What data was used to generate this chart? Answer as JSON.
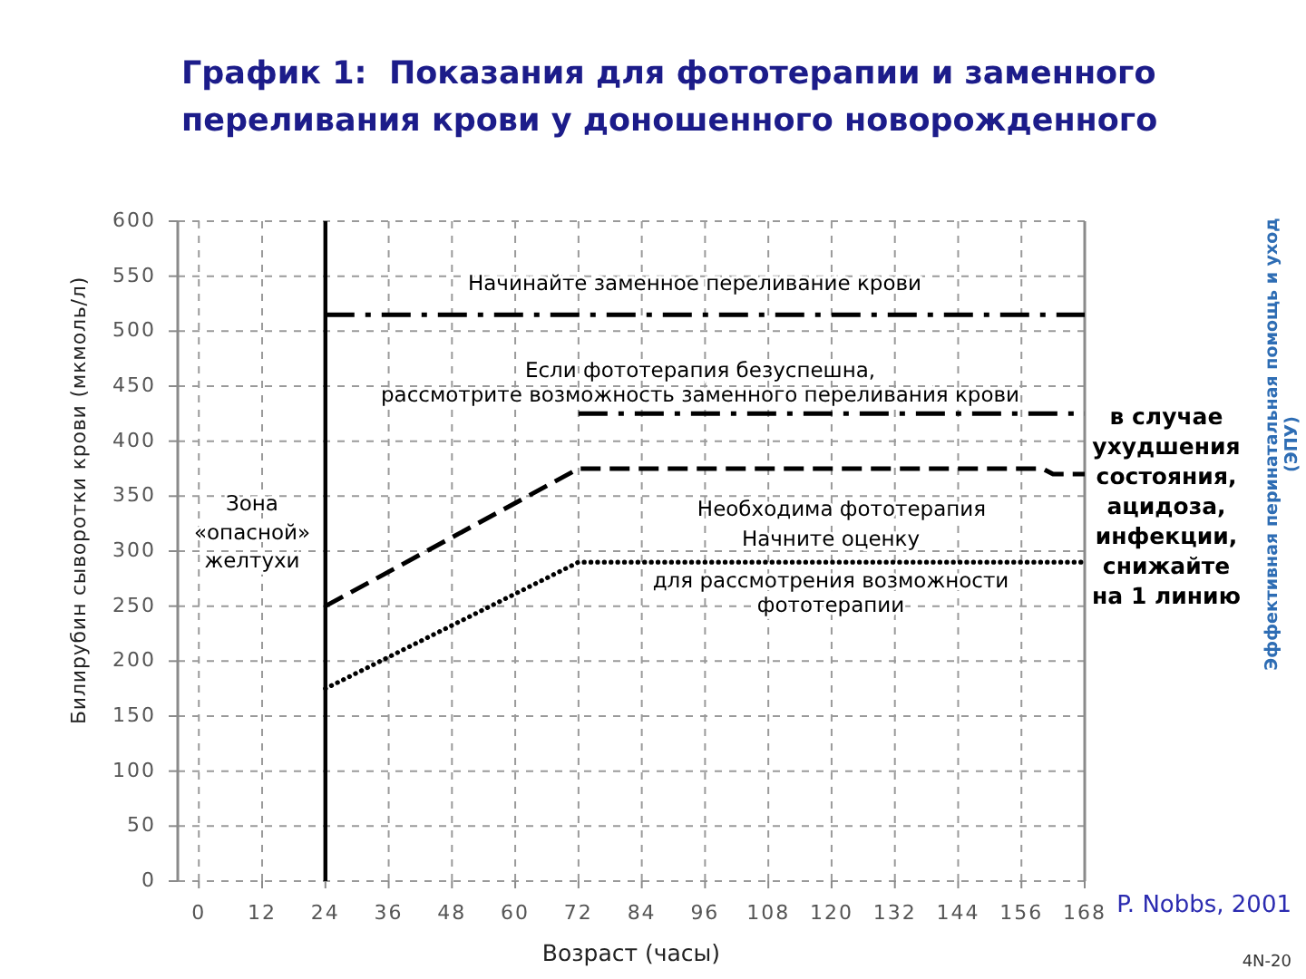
{
  "chart_data": {
    "type": "line",
    "title": "График 1:  Показания для фототерапии и заменного переливания крови у доношенного новорожденного",
    "xlabel": "Возраст (часы)",
    "ylabel": "Билирубин сыворотки крови (мкмоль/л)",
    "xlim": [
      -4,
      168
    ],
    "xticks": [
      0,
      12,
      24,
      36,
      48,
      60,
      72,
      84,
      96,
      108,
      120,
      132,
      144,
      156,
      168
    ],
    "ylim": [
      0,
      600
    ],
    "yticks": [
      0,
      50,
      100,
      150,
      200,
      250,
      300,
      350,
      400,
      450,
      500,
      550,
      600
    ],
    "grid": true,
    "series": [
      {
        "x": [
          24,
          168
        ],
        "values": [
          515,
          515
        ],
        "color": "#000000",
        "line_style": "dashdot"
      },
      {
        "x": [
          72,
          168
        ],
        "values": [
          425,
          425
        ],
        "color": "#000000",
        "line_style": "dashdot"
      },
      {
        "x": [
          24,
          72,
          160,
          162,
          168
        ],
        "values": [
          250,
          375,
          375,
          370,
          370
        ],
        "color": "#000000",
        "line_style": "dashed"
      },
      {
        "x": [
          24,
          72,
          168
        ],
        "values": [
          175,
          290,
          290
        ],
        "color": "#000000",
        "line_style": "dotted"
      }
    ],
    "ref_lines": [
      {
        "axis": "x",
        "value": 24,
        "color": "#000000"
      }
    ],
    "annotations": [
      "Начинайте заменное переливание крови",
      "Если фототерапия безуспешна,",
      "рассмотрите возможность заменного переливания крови",
      "Необходима фототерапия",
      "Начните оценку",
      "для рассмотрения возможности",
      "фототерапии",
      "Зона",
      "«опасной»",
      "желтухи",
      "в случае ухудшения состояния, ацидоза, инфекции, снижайте на 1 линию",
      "Эффективная перинатальная помощь и уход (ЭПУ)",
      "P. Nobbs, 2001",
      "4N-20"
    ]
  }
}
